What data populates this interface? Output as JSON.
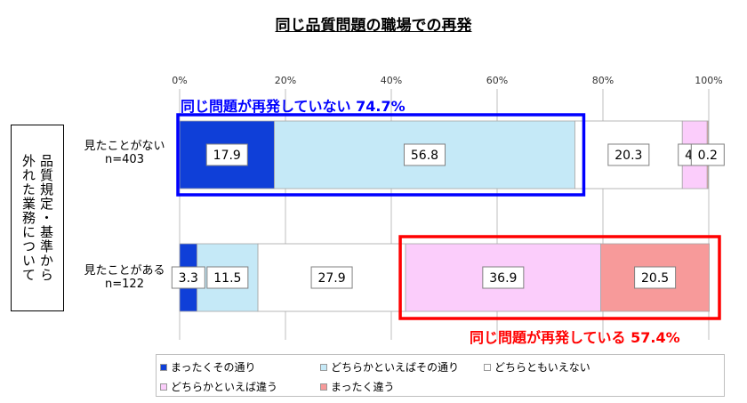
{
  "chart_data": {
    "type": "bar",
    "orientation": "horizontal",
    "stacked": true,
    "title": "同じ品質問題の職場での再発",
    "y_title": [
      "品質規定・基準から",
      "外れた業務について"
    ],
    "categories": [
      {
        "label": "見たことがない",
        "n": "n=403"
      },
      {
        "label": "見たことがある",
        "n": "n=122"
      }
    ],
    "series": [
      {
        "name": "まったくその通り",
        "values": [
          17.9,
          3.3
        ],
        "color": "#0f3fd8"
      },
      {
        "name": "どちらかといえばその通り",
        "values": [
          56.8,
          11.5
        ],
        "color": "#c5e9f7"
      },
      {
        "name": "どちらともいえない",
        "values": [
          20.3,
          27.9
        ],
        "color": "#ffffff"
      },
      {
        "name": "どちらかといえば違う",
        "values": [
          4.7,
          36.9
        ],
        "color": "#fbcdfb"
      },
      {
        "name": "まったく違う",
        "values": [
          0.2,
          20.5
        ],
        "color": "#f79a9a"
      }
    ],
    "x_ticks": [
      "0%",
      "20%",
      "40%",
      "60%",
      "80%",
      "100%"
    ],
    "xlim": [
      0,
      100
    ],
    "grid": true,
    "legend_position": "bottom",
    "annotations": [
      {
        "text": "同じ問題が再発していない",
        "value": "74.7%",
        "color": "#0000ff"
      },
      {
        "text": "同じ問題が再発している",
        "value": "57.4%",
        "color": "#ff0000"
      }
    ]
  }
}
